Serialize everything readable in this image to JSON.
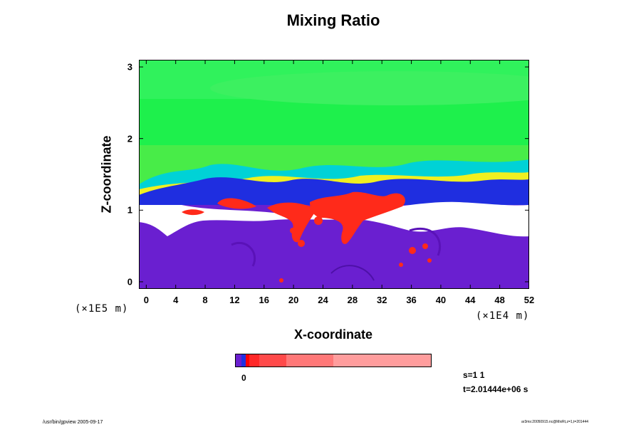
{
  "chart_data": {
    "type": "heatmap",
    "title": "Mixing Ratio",
    "xlabel": "X-coordinate",
    "ylabel": "Z-coordinate",
    "x_scale_note": "(×1E4 m)",
    "y_scale_note": "(×1E5 m)",
    "xlim": [
      -1,
      52
    ],
    "ylim": [
      -0.1,
      3.1
    ],
    "xticks": [
      "0",
      "4",
      "8",
      "12",
      "16",
      "20",
      "24",
      "28",
      "32",
      "36",
      "40",
      "44",
      "48",
      "52"
    ],
    "xtick_values": [
      0,
      4,
      8,
      12,
      16,
      20,
      24,
      28,
      32,
      36,
      40,
      44,
      48,
      52
    ],
    "yticks": [
      "0",
      "1",
      "2",
      "3"
    ],
    "ytick_values": [
      0,
      1,
      2,
      3
    ],
    "colorbar": {
      "label": "0",
      "colors": [
        "#6a1fd0",
        "#2030e0",
        "#ff0000",
        "#ff2828",
        "#ff4a4a",
        "#ff7878",
        "#ff9d9d"
      ],
      "widths": [
        3,
        2,
        2,
        5,
        14,
        24,
        50
      ]
    },
    "annotations": [
      "s=1 1",
      "t=2.01444e+06 s"
    ]
  },
  "footer": {
    "left": "/usr/bin/gpview 2005-09-17",
    "right": "ar3ms:20050915.nc@MixRt,z=1,t=201444"
  },
  "colors": {
    "purple": "#6a1fd0",
    "green_top": "#1ef04c",
    "green_low": "#44ee44",
    "blue": "#1f2ee0",
    "yellow": "#f0f020",
    "cyan": "#00d2d6",
    "red": "#ff2a1a",
    "white": "#ffffff"
  }
}
